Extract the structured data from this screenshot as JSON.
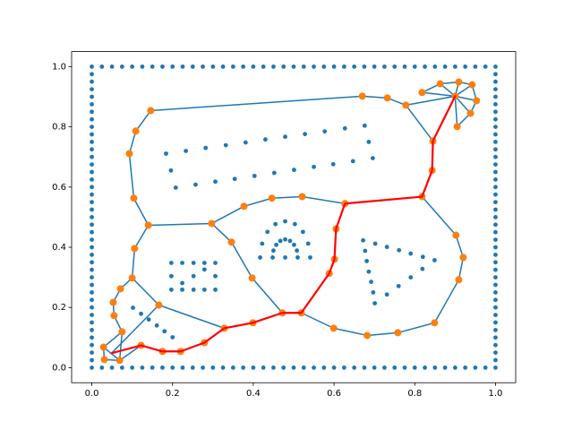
{
  "chart_data": {
    "type": "scatter",
    "xlim": [
      -0.05,
      1.05
    ],
    "ylim": [
      -0.05,
      1.05
    ],
    "xticks": [
      {
        "value": 0,
        "label": "0.0"
      },
      0.2,
      0.4,
      0.6,
      0.8,
      {
        "value": 1,
        "label": "1.0"
      }
    ],
    "yticks": [
      {
        "value": 0,
        "label": "0.0"
      },
      0.2,
      0.4,
      0.6,
      0.8,
      {
        "value": 1,
        "label": "1.0"
      }
    ],
    "series": [
      {
        "type": "scatter",
        "color": "#1f77b4",
        "x": [
          0,
          0.025,
          0.05,
          0.075,
          0.1,
          0.125,
          0.15,
          0.175,
          0.2,
          0.225,
          0.25,
          0.275,
          0.3,
          0.325,
          0.35,
          0.375,
          0.4,
          0.425,
          0.45,
          0.475,
          0.5,
          0.525,
          0.55,
          0.575,
          0.6,
          0.625,
          0.65,
          0.675,
          0.7,
          0.725,
          0.75,
          0.775,
          0.8,
          0.825,
          0.85,
          0.875,
          0.9,
          0.925,
          0.95,
          0.975,
          1
        ],
        "y": [
          0,
          0,
          0,
          0,
          0,
          0,
          0,
          0,
          0,
          0,
          0,
          0,
          0,
          0,
          0,
          0,
          0,
          0,
          0,
          0,
          0,
          0,
          0,
          0,
          0,
          0,
          0,
          0,
          0,
          0,
          0,
          0,
          0,
          0,
          0,
          0,
          0,
          0,
          0,
          0,
          0
        ]
      },
      {
        "type": "scatter",
        "color": "#1f77b4",
        "x": [
          0,
          0.025,
          0.05,
          0.075,
          0.1,
          0.125,
          0.15,
          0.175,
          0.2,
          0.225,
          0.25,
          0.275,
          0.3,
          0.325,
          0.35,
          0.375,
          0.4,
          0.425,
          0.45,
          0.475,
          0.5,
          0.525,
          0.55,
          0.575,
          0.6,
          0.625,
          0.65,
          0.675,
          0.7,
          0.725,
          0.75,
          0.775,
          0.8,
          0.825,
          0.85,
          0.875,
          0.9,
          0.925,
          0.95,
          0.975,
          1
        ],
        "y": [
          1,
          1,
          1,
          1,
          1,
          1,
          1,
          1,
          1,
          1,
          1,
          1,
          1,
          1,
          1,
          1,
          1,
          1,
          1,
          1,
          1,
          1,
          1,
          1,
          1,
          1,
          1,
          1,
          1,
          1,
          1,
          1,
          1,
          1,
          1,
          1,
          1,
          1,
          1,
          1,
          1
        ]
      },
      {
        "type": "scatter",
        "color": "#1f77b4",
        "x": [
          0,
          0,
          0,
          0,
          0,
          0,
          0,
          0,
          0,
          0,
          0,
          0,
          0,
          0,
          0,
          0,
          0,
          0,
          0,
          0,
          0,
          0,
          0,
          0,
          0,
          0,
          0,
          0,
          0,
          0,
          0,
          0,
          0,
          0,
          0,
          0,
          0,
          0,
          0
        ],
        "y": [
          0.025,
          0.05,
          0.075,
          0.1,
          0.125,
          0.15,
          0.175,
          0.2,
          0.225,
          0.25,
          0.275,
          0.3,
          0.325,
          0.35,
          0.375,
          0.4,
          0.425,
          0.45,
          0.475,
          0.5,
          0.525,
          0.55,
          0.575,
          0.6,
          0.625,
          0.65,
          0.675,
          0.7,
          0.725,
          0.75,
          0.775,
          0.8,
          0.825,
          0.85,
          0.875,
          0.9,
          0.925,
          0.95,
          0.975
        ]
      },
      {
        "type": "scatter",
        "color": "#1f77b4",
        "x": [
          1,
          1,
          1,
          1,
          1,
          1,
          1,
          1,
          1,
          1,
          1,
          1,
          1,
          1,
          1,
          1,
          1,
          1,
          1,
          1,
          1,
          1,
          1,
          1,
          1,
          1,
          1,
          1,
          1,
          1,
          1,
          1,
          1,
          1,
          1,
          1,
          1,
          1,
          1
        ],
        "y": [
          0.025,
          0.05,
          0.075,
          0.1,
          0.125,
          0.15,
          0.175,
          0.2,
          0.225,
          0.25,
          0.275,
          0.3,
          0.325,
          0.35,
          0.375,
          0.4,
          0.425,
          0.45,
          0.475,
          0.5,
          0.525,
          0.55,
          0.575,
          0.6,
          0.625,
          0.65,
          0.675,
          0.7,
          0.725,
          0.75,
          0.775,
          0.8,
          0.825,
          0.85,
          0.875,
          0.9,
          0.925,
          0.95,
          0.975
        ]
      },
      {
        "type": "scatter",
        "color": "#1f77b4",
        "x": [
          0.184,
          0.233,
          0.282,
          0.332,
          0.381,
          0.43,
          0.479,
          0.528,
          0.577,
          0.627,
          0.676,
          0.686,
          0.696,
          0.647,
          0.598,
          0.55,
          0.501,
          0.452,
          0.403,
          0.354,
          0.306,
          0.257,
          0.208,
          0.196
        ],
        "y": [
          0.711,
          0.72,
          0.73,
          0.739,
          0.748,
          0.758,
          0.767,
          0.776,
          0.785,
          0.795,
          0.804,
          0.75,
          0.696,
          0.686,
          0.676,
          0.667,
          0.657,
          0.647,
          0.637,
          0.627,
          0.618,
          0.608,
          0.598,
          0.655
        ]
      },
      {
        "type": "scatter",
        "color": "#1f77b4",
        "x": [
          0.197,
          0.224,
          0.252,
          0.279,
          0.306,
          0.197,
          0.224,
          0.252,
          0.279,
          0.306,
          0.197,
          0.306,
          0.224,
          0.252,
          0.279
        ],
        "y": [
          0.348,
          0.348,
          0.348,
          0.348,
          0.348,
          0.259,
          0.259,
          0.259,
          0.259,
          0.259,
          0.304,
          0.304,
          0.281,
          0.304,
          0.326
        ]
      },
      {
        "type": "scatter",
        "color": "#1f77b4",
        "x": [
          0.672,
          0.702,
          0.731,
          0.761,
          0.79,
          0.82,
          0.849,
          0.819,
          0.79,
          0.76,
          0.731,
          0.701,
          0.697,
          0.692,
          0.686,
          0.681,
          0.677
        ],
        "y": [
          0.423,
          0.412,
          0.401,
          0.39,
          0.379,
          0.368,
          0.357,
          0.328,
          0.3,
          0.271,
          0.243,
          0.214,
          0.25,
          0.285,
          0.319,
          0.354,
          0.388
        ]
      },
      {
        "type": "scatter",
        "color": "#1f77b4",
        "x": [
          0.541,
          0.536,
          0.523,
          0.503,
          0.479,
          0.455,
          0.435,
          0.422,
          0.417,
          0.51,
          0.508,
          0.501,
          0.491,
          0.479,
          0.467,
          0.457,
          0.45,
          0.448,
          0.479
        ],
        "y": [
          0.366,
          0.412,
          0.451,
          0.477,
          0.486,
          0.477,
          0.451,
          0.412,
          0.366,
          0.366,
          0.389,
          0.408,
          0.421,
          0.426,
          0.421,
          0.408,
          0.389,
          0.366,
          0.366
        ]
      },
      {
        "type": "scatter",
        "color": "#1f77b4",
        "x": [
          0.102,
          0.122,
          0.141,
          0.161,
          0.18,
          0.2
        ],
        "y": [
          0.199,
          0.179,
          0.16,
          0.14,
          0.121,
          0.101
        ]
      },
      {
        "type": "line",
        "color": "#1f77b4",
        "linewidth": 1.5,
        "x": [
          0.146,
          0.67,
          0.732,
          0.778,
          0.9,
          null,
          0.9,
          0.818,
          null,
          0.9,
          0.863,
          null,
          0.9,
          0.909,
          null,
          0.9,
          0.942,
          null,
          0.9,
          0.953,
          null,
          0.9,
          0.938,
          null,
          0.9,
          0.905,
          null,
          0.9,
          0.845,
          null,
          0.818,
          0.863,
          0.909,
          0.942,
          0.953,
          0.938,
          0.905,
          null,
          0.778,
          0.845,
          null,
          0.146,
          0.109,
          0.093,
          0.104,
          0.14,
          0.106,
          0.1,
          0.071,
          0.053,
          0.055,
          0.075,
          0.029,
          0.031,
          0.069,
          0.075,
          null,
          0.029,
          0.069,
          null,
          0.1,
          0.166,
          0.049,
          null,
          0.166,
          0.328,
          null,
          0.14,
          0.297,
          0.346,
          0.397,
          0.472,
          null,
          0.297,
          0.377,
          0.446,
          0.521,
          0.627,
          null,
          0.519,
          0.599,
          0.682,
          0.758,
          0.849,
          0.909,
          0.92,
          0.902,
          0.818,
          null,
          0.069,
          0.122
        ],
        "y": [
          0.854,
          0.902,
          0.896,
          0.872,
          0.902,
          null,
          0.902,
          0.914,
          null,
          0.902,
          0.943,
          null,
          0.902,
          0.949,
          null,
          0.902,
          0.94,
          null,
          0.902,
          0.887,
          null,
          0.902,
          0.845,
          null,
          0.902,
          0.801,
          null,
          0.902,
          0.753,
          null,
          0.914,
          0.943,
          0.949,
          0.94,
          0.887,
          0.845,
          0.801,
          null,
          0.872,
          0.753,
          null,
          0.854,
          0.786,
          0.711,
          0.563,
          0.473,
          0.396,
          0.298,
          0.262,
          0.217,
          0.173,
          0.119,
          0.068,
          0.027,
          0.024,
          0.119,
          null,
          0.068,
          0.024,
          null,
          0.298,
          0.208,
          0.048,
          null,
          0.208,
          0.131,
          null,
          0.473,
          0.479,
          0.417,
          0.298,
          0.182,
          null,
          0.479,
          0.536,
          0.563,
          0.568,
          0.545,
          null,
          0.182,
          0.131,
          0.107,
          0.116,
          0.149,
          0.292,
          0.366,
          0.44,
          0.568,
          null,
          0.024,
          0.074
        ]
      },
      {
        "type": "scatter",
        "color": "#ff7f0e",
        "size": "large",
        "x": [
          0.146,
          0.109,
          0.093,
          0.104,
          0.14,
          0.106,
          0.1,
          0.071,
          0.053,
          0.055,
          0.075,
          0.029,
          0.031,
          0.069,
          0.122,
          0.175,
          0.22,
          0.279,
          0.328,
          0.399,
          0.472,
          0.519,
          0.588,
          0.601,
          0.605,
          0.627,
          0.818,
          0.843,
          0.845,
          0.9,
          0.166,
          0.297,
          0.346,
          0.377,
          0.397,
          0.446,
          0.521,
          0.599,
          0.682,
          0.758,
          0.849,
          0.909,
          0.92,
          0.902,
          0.67,
          0.732,
          0.778,
          0.818,
          0.863,
          0.909,
          0.942,
          0.953,
          0.938,
          0.905
        ],
        "y": [
          0.854,
          0.786,
          0.711,
          0.563,
          0.473,
          0.396,
          0.298,
          0.262,
          0.217,
          0.173,
          0.119,
          0.068,
          0.027,
          0.024,
          0.074,
          0.054,
          0.054,
          0.083,
          0.131,
          0.149,
          0.182,
          0.182,
          0.313,
          0.36,
          0.461,
          0.545,
          0.568,
          0.655,
          0.753,
          0.902,
          0.208,
          0.479,
          0.417,
          0.536,
          0.298,
          0.563,
          0.568,
          0.131,
          0.107,
          0.116,
          0.149,
          0.292,
          0.366,
          0.44,
          0.902,
          0.896,
          0.872,
          0.914,
          0.943,
          0.949,
          0.94,
          0.887,
          0.845,
          0.801
        ]
      },
      {
        "type": "line",
        "color": "#ff0000",
        "linewidth": 2.2,
        "x": [
          0.049,
          0.122,
          0.175,
          0.22,
          0.279,
          0.328,
          0.399,
          0.472,
          0.519,
          0.588,
          0.601,
          0.605,
          0.627,
          0.818,
          0.843,
          0.845,
          0.9
        ],
        "y": [
          0.048,
          0.074,
          0.054,
          0.054,
          0.083,
          0.131,
          0.149,
          0.182,
          0.182,
          0.313,
          0.36,
          0.461,
          0.545,
          0.568,
          0.655,
          0.753,
          0.902
        ]
      }
    ]
  }
}
